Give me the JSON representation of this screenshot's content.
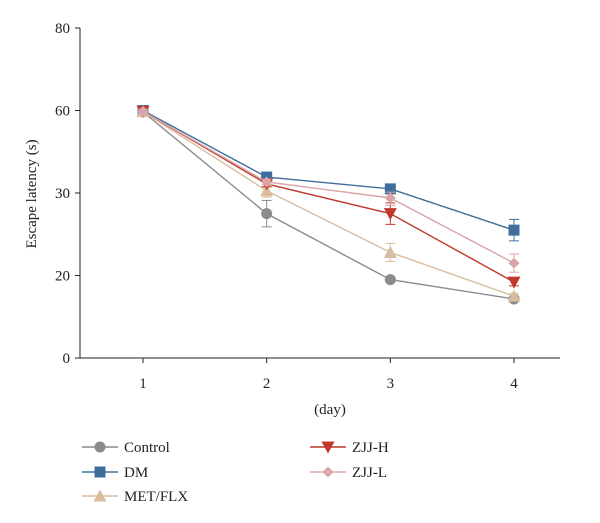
{
  "chart_data": {
    "type": "line",
    "xlabel": "(day)",
    "ylabel": "Escape latency (s)",
    "x": [
      1,
      2,
      3,
      4
    ],
    "x_ticks": [
      "1",
      "2",
      "3",
      "4"
    ],
    "y_ticks": [
      "0",
      "20",
      "30",
      "60",
      "80"
    ],
    "y_tick_values": [
      0,
      20,
      30,
      60,
      80
    ],
    "ylim": [
      0,
      80
    ],
    "y_scale_note": "y axis is non-linear: ticks 0,20,30,60,80 are equally spaced",
    "grid": false,
    "legend_position": "bottom",
    "series": [
      {
        "name": "Control",
        "marker": "circle",
        "color": "#8c8c8c",
        "values": [
          59.5,
          27.5,
          19.0,
          14.3
        ],
        "errors": [
          0.6,
          1.6,
          0.6,
          0.4
        ]
      },
      {
        "name": "DM",
        "marker": "square",
        "color": "#3f6e9c",
        "values": [
          60.0,
          35.8,
          31.5,
          25.5
        ],
        "errors": [
          0.6,
          1.1,
          1.0,
          1.3
        ]
      },
      {
        "name": "MET/FLX",
        "marker": "triangle-up",
        "color": "#d8bd9f",
        "values": [
          59.6,
          30.8,
          22.8,
          15.0
        ],
        "errors": [
          0.6,
          1.3,
          1.1,
          0.7
        ]
      },
      {
        "name": "ZJJ-H",
        "marker": "triangle-down",
        "color": "#c0392b",
        "values": [
          59.7,
          33.3,
          27.5,
          18.4
        ],
        "errors": [
          0.6,
          1.0,
          1.3,
          0.9
        ]
      },
      {
        "name": "ZJJ-L",
        "marker": "diamond",
        "color": "#d9a5a8",
        "values": [
          59.7,
          34.0,
          29.4,
          21.5
        ],
        "errors": [
          0.6,
          1.0,
          0.9,
          1.1
        ]
      }
    ]
  }
}
